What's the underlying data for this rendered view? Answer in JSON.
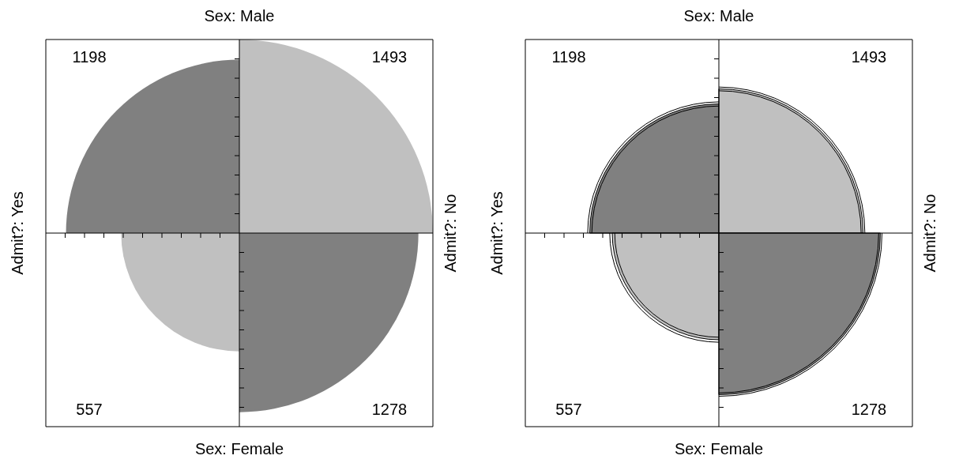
{
  "chart_data": [
    {
      "type": "other",
      "title": "Sex: Male",
      "xlabel": "Sex: Female",
      "ylabel": "Admit?: Yes",
      "y2label": "Admit?: No",
      "values": [
        1198,
        1493,
        557,
        1278
      ],
      "colors": [
        "#808080",
        "#c0c0c0",
        "#c0c0c0",
        "#808080"
      ],
      "data_labels": true
    },
    {
      "type": "other",
      "title": "Sex: Male",
      "xlabel": "Sex: Female",
      "ylabel": "Admit?: Yes",
      "y2label": "Admit?: No",
      "values": [
        1198,
        1493,
        557,
        1278
      ],
      "colors": [
        "#808080",
        "#c0c0c0",
        "#c0c0c0",
        "#808080"
      ],
      "data_labels": true
    }
  ]
}
